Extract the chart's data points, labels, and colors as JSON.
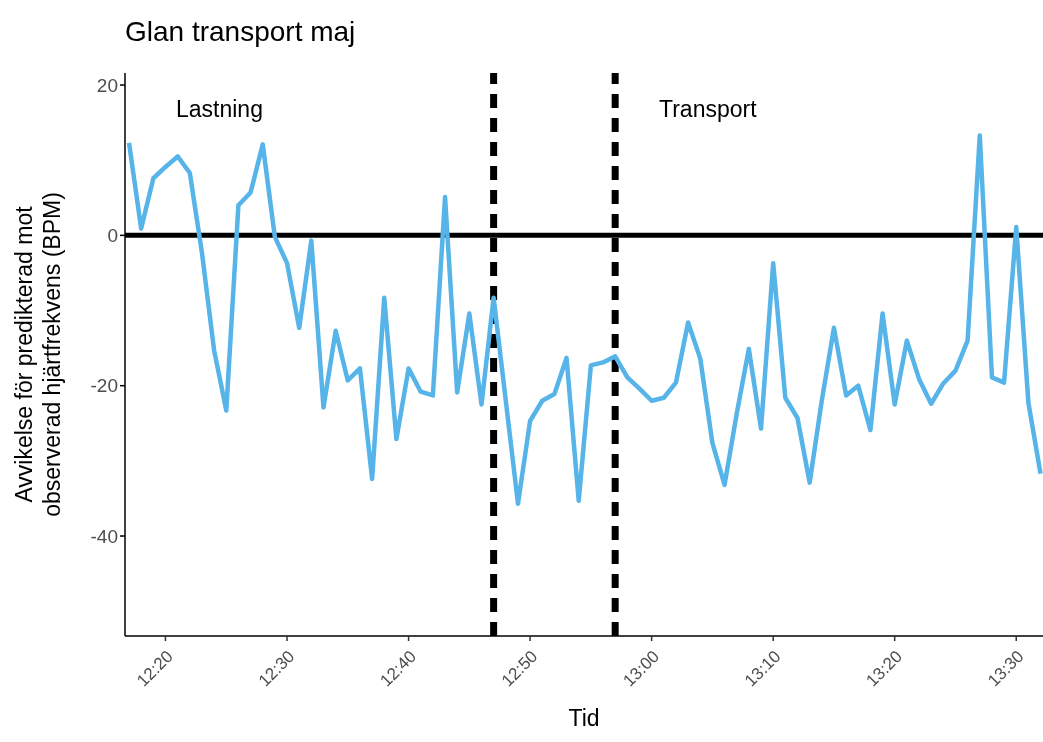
{
  "chart_data": {
    "type": "line",
    "title": "Glan transport maj",
    "xlabel": "Tid",
    "ylabel": "Avvikelse för predikterad mot\nobserverad hjärtfrekvens (BPM)",
    "x": [
      12.2833,
      12.3,
      12.3167,
      12.3333,
      12.35,
      12.3667,
      12.3833,
      12.4,
      12.4167,
      12.4333,
      12.45,
      12.4667,
      12.4833,
      12.5,
      12.5167,
      12.5333,
      12.55,
      12.5667,
      12.5833,
      12.6,
      12.6167,
      12.6333,
      12.65,
      12.6667,
      12.6833,
      12.7,
      12.7167,
      12.7333,
      12.75,
      12.7667,
      12.7833,
      12.8,
      12.8167,
      12.8333,
      12.85,
      12.8667,
      12.8833,
      12.9,
      12.9167,
      12.9333,
      12.95,
      12.9667,
      12.9833,
      13.0,
      13.0167,
      13.0333,
      13.05,
      13.0667,
      13.0833,
      13.1,
      13.1167,
      13.1333,
      13.15,
      13.1667,
      13.1833,
      13.2,
      13.2167,
      13.2333,
      13.25,
      13.2667,
      13.2833,
      13.3,
      13.3167,
      13.3333,
      13.35,
      13.3667,
      13.3833,
      13.4,
      13.4167,
      13.4333,
      13.45,
      13.4667,
      13.4833,
      13.5,
      13.5167,
      13.5333
    ],
    "series": [
      {
        "color": "#56b4e9",
        "values": [
          12.3,
          0.9,
          7.6,
          9.1,
          10.5,
          8.3,
          -2.3,
          -15.3,
          -23.3,
          4,
          5.7,
          12.1,
          -0.2,
          -3.7,
          -12.3,
          -0.7,
          -22.9,
          -12.7,
          -19.3,
          -17.7,
          -32.4,
          -8.3,
          -27.1,
          -17.7,
          -20.8,
          -21.3,
          5.1,
          -20.9,
          -10.4,
          -22.5,
          -8.3,
          -22,
          -35.7,
          -24.7,
          -22,
          -21.1,
          -16.3,
          -35.3,
          -17.3,
          -16.9,
          -16.1,
          -18.9,
          -20.4,
          -22,
          -21.6,
          -19.6,
          -11.6,
          -16.4,
          -27.6,
          -33.2,
          -23.7,
          -15.1,
          -25.7,
          -3.7,
          -21.6,
          -24.3,
          -32.9,
          -22,
          -12.3,
          -21.3,
          -20,
          -25.9,
          -10.4,
          -22.5,
          -14,
          -19.1,
          -22.4,
          -19.7,
          -18,
          -14,
          13.3,
          -18.9,
          -19.6,
          1.1,
          -22.3,
          -31.7
        ]
      }
    ],
    "xlim": [
      12.2778,
      13.5367
    ],
    "ylim": [
      -53.3,
      21.6
    ],
    "xticks": [
      {
        "value": 12.3333,
        "label": "12:20"
      },
      {
        "value": 12.5,
        "label": "12:30"
      },
      {
        "value": 12.6667,
        "label": "12:40"
      },
      {
        "value": 12.8333,
        "label": "12:50"
      },
      {
        "value": 13.0,
        "label": "13:00"
      },
      {
        "value": 13.1667,
        "label": "13:10"
      },
      {
        "value": 13.3333,
        "label": "13:20"
      },
      {
        "value": 13.5,
        "label": "13:30"
      }
    ],
    "yticks": [
      -40,
      -20,
      0,
      20
    ],
    "ref_lines": [
      {
        "axis": "y",
        "value": 0,
        "color": "#000000",
        "line_style": "solid"
      },
      {
        "axis": "x",
        "value": 12.7833,
        "color": "#000000",
        "line_style": "dashed"
      },
      {
        "axis": "x",
        "value": 12.95,
        "color": "#000000",
        "line_style": "dashed"
      }
    ],
    "annotations": [
      "Lastning",
      "Transport"
    ],
    "grid": false,
    "legend": false,
    "marker": "none",
    "line_style": "solid"
  }
}
